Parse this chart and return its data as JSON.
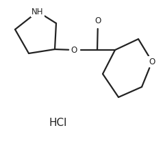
{
  "background_color": "#ffffff",
  "line_color": "#222222",
  "line_width": 1.6,
  "font_size_atom": 8.5,
  "font_size_hcl": 11,
  "hcl_label": "HCl",
  "nh_label": "NH",
  "o_labels": [
    "O",
    "O",
    "O"
  ]
}
